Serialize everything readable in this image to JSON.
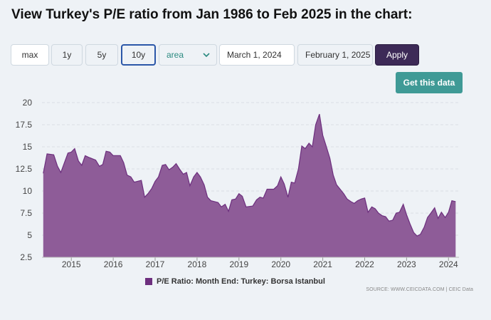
{
  "page_title": "View Turkey's P/E ratio from Jan 1986 to Feb 2025 in the chart:",
  "controls": {
    "ranges": [
      "max",
      "1y",
      "5y",
      "10y"
    ],
    "active_range": "10y",
    "chart_type": "area",
    "start_date": "March 1, 2024",
    "end_date": "February 1, 2025",
    "apply_label": "Apply",
    "get_data_label": "Get this data"
  },
  "legend_label": "P/E Ratio: Month End: Turkey: Borsa Istanbul",
  "source_text": "SOURCE: WWW.CEICDATA.COM | CEIC Data",
  "colors": {
    "area_fill": "#8e5c98",
    "area_stroke": "#6d2f7e",
    "grid": "#d9dee4",
    "apply_bg": "#3d2a57",
    "get_data_bg": "#3f9a96"
  },
  "chart_data": {
    "type": "area",
    "title": "",
    "xlabel": "",
    "ylabel": "",
    "ylim": [
      2.5,
      20
    ],
    "yticks": [
      "2.5",
      "5",
      "7.5",
      "10",
      "12.5",
      "15",
      "17.5",
      "20"
    ],
    "xticks": [
      "2015",
      "2016",
      "2017",
      "2018",
      "2019",
      "2020",
      "2021",
      "2022",
      "2023",
      "2024"
    ],
    "xlim": [
      2014.3,
      2024.25
    ],
    "grid": true,
    "legend_position": "bottom",
    "series": [
      {
        "name": "P/E Ratio: Month End: Turkey: Borsa Istanbul",
        "points": [
          [
            2014.33,
            12.0
          ],
          [
            2014.42,
            14.2
          ],
          [
            2014.58,
            14.1
          ],
          [
            2014.67,
            12.8
          ],
          [
            2014.75,
            12.1
          ],
          [
            2014.92,
            14.3
          ],
          [
            2015.0,
            14.4
          ],
          [
            2015.08,
            14.8
          ],
          [
            2015.17,
            13.4
          ],
          [
            2015.25,
            12.9
          ],
          [
            2015.33,
            14.0
          ],
          [
            2015.42,
            13.8
          ],
          [
            2015.58,
            13.5
          ],
          [
            2015.67,
            12.8
          ],
          [
            2015.75,
            13.0
          ],
          [
            2015.83,
            14.5
          ],
          [
            2015.92,
            14.4
          ],
          [
            2016.0,
            14.0
          ],
          [
            2016.17,
            14.0
          ],
          [
            2016.25,
            13.2
          ],
          [
            2016.33,
            11.8
          ],
          [
            2016.42,
            11.6
          ],
          [
            2016.5,
            11.0
          ],
          [
            2016.67,
            11.2
          ],
          [
            2016.75,
            9.3
          ],
          [
            2016.83,
            9.7
          ],
          [
            2016.92,
            10.3
          ],
          [
            2017.0,
            11.1
          ],
          [
            2017.08,
            11.6
          ],
          [
            2017.17,
            12.9
          ],
          [
            2017.25,
            13.0
          ],
          [
            2017.33,
            12.4
          ],
          [
            2017.42,
            12.7
          ],
          [
            2017.5,
            13.1
          ],
          [
            2017.58,
            12.5
          ],
          [
            2017.67,
            11.9
          ],
          [
            2017.75,
            12.1
          ],
          [
            2017.83,
            10.6
          ],
          [
            2017.92,
            11.6
          ],
          [
            2018.0,
            12.1
          ],
          [
            2018.08,
            11.6
          ],
          [
            2018.17,
            10.7
          ],
          [
            2018.25,
            9.3
          ],
          [
            2018.33,
            8.9
          ],
          [
            2018.5,
            8.7
          ],
          [
            2018.58,
            8.2
          ],
          [
            2018.67,
            8.5
          ],
          [
            2018.75,
            7.7
          ],
          [
            2018.83,
            9.0
          ],
          [
            2018.92,
            9.1
          ],
          [
            2019.0,
            9.7
          ],
          [
            2019.08,
            9.4
          ],
          [
            2019.17,
            8.2
          ],
          [
            2019.33,
            8.3
          ],
          [
            2019.42,
            9.0
          ],
          [
            2019.5,
            9.3
          ],
          [
            2019.58,
            9.2
          ],
          [
            2019.67,
            10.2
          ],
          [
            2019.83,
            10.2
          ],
          [
            2019.92,
            10.6
          ],
          [
            2020.0,
            11.6
          ],
          [
            2020.08,
            10.8
          ],
          [
            2020.17,
            9.3
          ],
          [
            2020.25,
            11.0
          ],
          [
            2020.33,
            10.9
          ],
          [
            2020.42,
            12.5
          ],
          [
            2020.5,
            15.1
          ],
          [
            2020.58,
            14.8
          ],
          [
            2020.67,
            15.4
          ],
          [
            2020.75,
            15.0
          ],
          [
            2020.83,
            17.5
          ],
          [
            2020.92,
            18.7
          ],
          [
            2021.0,
            16.3
          ],
          [
            2021.08,
            15.1
          ],
          [
            2021.17,
            13.7
          ],
          [
            2021.25,
            11.8
          ],
          [
            2021.33,
            10.7
          ],
          [
            2021.5,
            9.7
          ],
          [
            2021.58,
            9.1
          ],
          [
            2021.67,
            8.8
          ],
          [
            2021.75,
            8.6
          ],
          [
            2021.83,
            8.9
          ],
          [
            2021.92,
            9.1
          ],
          [
            2022.0,
            9.2
          ],
          [
            2022.08,
            7.6
          ],
          [
            2022.17,
            8.2
          ],
          [
            2022.25,
            8.0
          ],
          [
            2022.33,
            7.5
          ],
          [
            2022.42,
            7.2
          ],
          [
            2022.5,
            7.1
          ],
          [
            2022.58,
            6.6
          ],
          [
            2022.67,
            6.7
          ],
          [
            2022.75,
            7.5
          ],
          [
            2022.83,
            7.6
          ],
          [
            2022.92,
            8.5
          ],
          [
            2023.0,
            7.3
          ],
          [
            2023.08,
            6.3
          ],
          [
            2023.17,
            5.3
          ],
          [
            2023.25,
            4.9
          ],
          [
            2023.33,
            5.1
          ],
          [
            2023.42,
            5.9
          ],
          [
            2023.5,
            7.0
          ],
          [
            2023.58,
            7.5
          ],
          [
            2023.67,
            8.1
          ],
          [
            2023.75,
            6.9
          ],
          [
            2023.83,
            7.6
          ],
          [
            2023.92,
            7.0
          ],
          [
            2024.0,
            7.6
          ],
          [
            2024.08,
            8.9
          ],
          [
            2024.17,
            8.8
          ]
        ]
      }
    ]
  }
}
